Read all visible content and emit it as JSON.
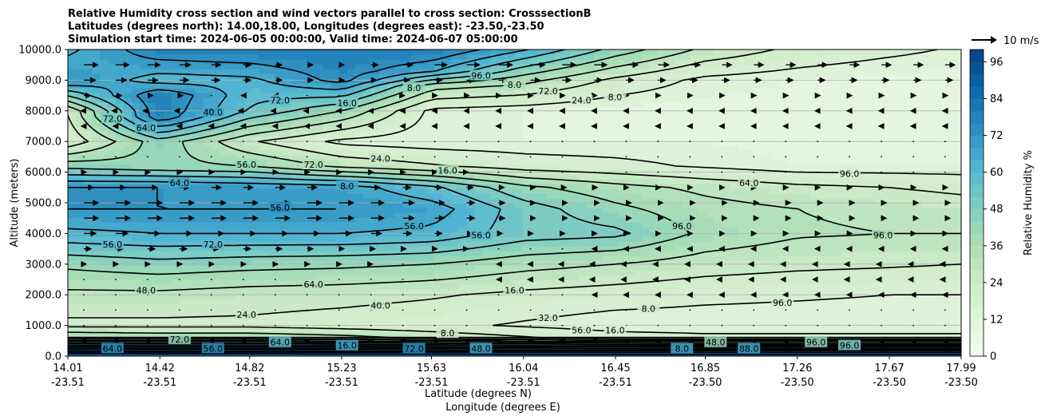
{
  "chart_data": {
    "type": "contourf",
    "title_lines": [
      "Relative Humidity cross section and wind vectors parallel to cross section: CrosssectionB",
      "Latitudes (degrees north): 14.00,18.00, Longitudes (degrees east): -23.50,-23.50",
      "Simulation start time: 2024-06-05 00:00:00, Valid time: 2024-06-07 05:00:00"
    ],
    "xlabel": "Latitude (degrees N)",
    "xlabel2": "Longitude (degrees E)",
    "ylabel": "Altitude (meters)",
    "xlim": [
      14.01,
      17.99
    ],
    "ylim": [
      0,
      10000
    ],
    "grid": "horizontal",
    "x_ticks": [
      {
        "lat": "14.01",
        "lon": "-23.51"
      },
      {
        "lat": "14.42",
        "lon": "-23.51"
      },
      {
        "lat": "14.82",
        "lon": "-23.51"
      },
      {
        "lat": "15.23",
        "lon": "-23.51"
      },
      {
        "lat": "15.63",
        "lon": "-23.51"
      },
      {
        "lat": "16.04",
        "lon": "-23.51"
      },
      {
        "lat": "16.45",
        "lon": "-23.51"
      },
      {
        "lat": "16.85",
        "lon": "-23.50"
      },
      {
        "lat": "17.26",
        "lon": "-23.50"
      },
      {
        "lat": "17.67",
        "lon": "-23.50"
      },
      {
        "lat": "17.99",
        "lon": "-23.50"
      }
    ],
    "y_ticks": [
      "0.0",
      "1000.0",
      "2000.0",
      "3000.0",
      "4000.0",
      "5000.0",
      "6000.0",
      "7000.0",
      "8000.0",
      "9000.0",
      "10000.0"
    ],
    "colorbar": {
      "label": "Relative Humidity %",
      "min": 0,
      "max": 100,
      "levels_step": 4,
      "ticks": [
        "0",
        "12",
        "24",
        "36",
        "48",
        "60",
        "72",
        "84",
        "96"
      ],
      "colormap": "GnBu"
    },
    "quiver_key": {
      "label": "10 m/s"
    },
    "rh_profiles": [
      {
        "lat": 14.01,
        "rh": [
          [
            0,
            95
          ],
          [
            600,
            40
          ],
          [
            1000,
            22
          ],
          [
            2000,
            30
          ],
          [
            3000,
            42
          ],
          [
            4000,
            62
          ],
          [
            4800,
            72
          ],
          [
            5500,
            72
          ],
          [
            6200,
            45
          ],
          [
            7000,
            18
          ],
          [
            8000,
            25
          ],
          [
            9000,
            72
          ],
          [
            10000,
            62
          ]
        ]
      },
      {
        "lat": 14.42,
        "rh": [
          [
            0,
            95
          ],
          [
            600,
            38
          ],
          [
            1000,
            22
          ],
          [
            2000,
            30
          ],
          [
            3000,
            45
          ],
          [
            4000,
            64
          ],
          [
            4800,
            72
          ],
          [
            5500,
            72
          ],
          [
            6200,
            42
          ],
          [
            7000,
            45
          ],
          [
            7800,
            78
          ],
          [
            8500,
            80
          ],
          [
            9000,
            60
          ],
          [
            10000,
            78
          ]
        ]
      },
      {
        "lat": 14.82,
        "rh": [
          [
            0,
            95
          ],
          [
            600,
            38
          ],
          [
            1000,
            22
          ],
          [
            2000,
            28
          ],
          [
            3000,
            43
          ],
          [
            4000,
            64
          ],
          [
            4800,
            72
          ],
          [
            5500,
            70
          ],
          [
            6200,
            40
          ],
          [
            7000,
            25
          ],
          [
            8000,
            55
          ],
          [
            9000,
            62
          ],
          [
            10000,
            80
          ]
        ]
      },
      {
        "lat": 15.23,
        "rh": [
          [
            0,
            95
          ],
          [
            600,
            35
          ],
          [
            1000,
            20
          ],
          [
            2000,
            27
          ],
          [
            3000,
            42
          ],
          [
            4000,
            64
          ],
          [
            4800,
            72
          ],
          [
            5500,
            68
          ],
          [
            6200,
            30
          ],
          [
            7000,
            14
          ],
          [
            8000,
            40
          ],
          [
            9000,
            75
          ],
          [
            10000,
            80
          ]
        ]
      },
      {
        "lat": 15.63,
        "rh": [
          [
            0,
            95
          ],
          [
            600,
            30
          ],
          [
            1000,
            18
          ],
          [
            2000,
            25
          ],
          [
            3000,
            40
          ],
          [
            4000,
            62
          ],
          [
            4800,
            68
          ],
          [
            5500,
            58
          ],
          [
            6200,
            25
          ],
          [
            7000,
            12
          ],
          [
            8000,
            14
          ],
          [
            8800,
            35
          ],
          [
            9300,
            65
          ],
          [
            10000,
            80
          ]
        ]
      },
      {
        "lat": 16.04,
        "rh": [
          [
            0,
            95
          ],
          [
            600,
            25
          ],
          [
            1000,
            15
          ],
          [
            2000,
            22
          ],
          [
            3000,
            35
          ],
          [
            4000,
            52
          ],
          [
            4800,
            52
          ],
          [
            5500,
            42
          ],
          [
            6200,
            20
          ],
          [
            7000,
            12
          ],
          [
            8000,
            12
          ],
          [
            9000,
            35
          ],
          [
            10000,
            65
          ]
        ]
      },
      {
        "lat": 16.45,
        "rh": [
          [
            0,
            95
          ],
          [
            600,
            20
          ],
          [
            1000,
            12
          ],
          [
            2000,
            20
          ],
          [
            3000,
            32
          ],
          [
            4000,
            50
          ],
          [
            4800,
            42
          ],
          [
            5500,
            35
          ],
          [
            6200,
            18
          ],
          [
            7000,
            12
          ],
          [
            8000,
            10
          ],
          [
            9000,
            22
          ],
          [
            10000,
            45
          ]
        ]
      },
      {
        "lat": 16.85,
        "rh": [
          [
            0,
            95
          ],
          [
            600,
            18
          ],
          [
            1000,
            12
          ],
          [
            2000,
            18
          ],
          [
            3000,
            28
          ],
          [
            4000,
            38
          ],
          [
            4800,
            35
          ],
          [
            5500,
            30
          ],
          [
            6200,
            15
          ],
          [
            7000,
            12
          ],
          [
            8000,
            10
          ],
          [
            9000,
            14
          ],
          [
            10000,
            30
          ]
        ]
      },
      {
        "lat": 17.26,
        "rh": [
          [
            0,
            95
          ],
          [
            600,
            18
          ],
          [
            1000,
            12
          ],
          [
            2000,
            17
          ],
          [
            3000,
            26
          ],
          [
            4000,
            33
          ],
          [
            4800,
            32
          ],
          [
            5500,
            26
          ],
          [
            6200,
            12
          ],
          [
            7000,
            10
          ],
          [
            8000,
            10
          ],
          [
            9000,
            12
          ],
          [
            10000,
            22
          ]
        ]
      },
      {
        "lat": 17.67,
        "rh": [
          [
            0,
            95
          ],
          [
            600,
            18
          ],
          [
            1000,
            12
          ],
          [
            2000,
            16
          ],
          [
            3000,
            25
          ],
          [
            4000,
            32
          ],
          [
            4800,
            30
          ],
          [
            5500,
            24
          ],
          [
            6200,
            12
          ],
          [
            7000,
            10
          ],
          [
            8000,
            10
          ],
          [
            9000,
            10
          ],
          [
            10000,
            18
          ]
        ]
      },
      {
        "lat": 17.99,
        "rh": [
          [
            0,
            95
          ],
          [
            600,
            18
          ],
          [
            1000,
            12
          ],
          [
            2000,
            16
          ],
          [
            3000,
            24
          ],
          [
            4000,
            32
          ],
          [
            4800,
            28
          ],
          [
            5500,
            22
          ],
          [
            6200,
            12
          ],
          [
            7000,
            10
          ],
          [
            8000,
            10
          ],
          [
            9000,
            10
          ],
          [
            10000,
            15
          ]
        ]
      }
    ],
    "contour_levels": [
      8,
      16,
      24,
      32,
      40,
      48,
      56,
      64,
      72,
      80,
      88,
      96
    ],
    "contour_labels": [
      "64.0",
      "56.0",
      "72.0",
      "48.0",
      "64.0",
      "72.0",
      "64.0",
      "56.0",
      "72.0",
      "40.0",
      "24.0",
      "56.0",
      "64.0",
      "56.0",
      "72.0",
      "64.0",
      "72.0",
      "16.0",
      "8.0",
      "16.0",
      "40.0",
      "24.0",
      "72.0",
      "56.0",
      "8.0",
      "8.0",
      "16.0",
      "48.0",
      "56.0",
      "96.0",
      "16.0",
      "8.0",
      "32.0",
      "72.0",
      "56.0",
      "24.0",
      "16.0",
      "8.0",
      "8.0",
      "8.0",
      "96.0",
      "48.0",
      "88.0",
      "64.0",
      "96.0",
      "96.0",
      "96.0",
      "96.0",
      "96.0"
    ],
    "wind_levels": [
      {
        "alt": 9500,
        "u": [
          6,
          5,
          3,
          2,
          5,
          6,
          5,
          4,
          4,
          4,
          4
        ]
      },
      {
        "alt": 9000,
        "u": [
          5,
          4,
          3,
          2,
          3,
          4,
          3,
          3,
          3,
          3,
          3
        ]
      },
      {
        "alt": 8500,
        "u": [
          3,
          2,
          -1,
          0,
          1,
          1,
          1,
          1,
          1,
          1,
          1
        ]
      },
      {
        "alt": 8000,
        "u": [
          -1,
          -2,
          -2,
          -1,
          -1,
          -1,
          -1,
          -1,
          -1,
          -1,
          -1
        ]
      },
      {
        "alt": 7500,
        "u": [
          -1,
          -1,
          -1,
          -1,
          -1,
          -1,
          -1,
          -1,
          -1,
          -1,
          -1
        ]
      },
      {
        "alt": 7000,
        "u": [
          0,
          0,
          0,
          0,
          0,
          0,
          0,
          0,
          0,
          0,
          0
        ]
      },
      {
        "alt": 6500,
        "u": [
          0,
          0,
          0,
          0,
          0,
          0,
          0,
          0,
          0,
          0,
          0
        ]
      },
      {
        "alt": 6000,
        "u": [
          1,
          1,
          1,
          1,
          1,
          0,
          0,
          0,
          0,
          0,
          0
        ]
      },
      {
        "alt": 5500,
        "u": [
          4,
          4,
          4,
          4,
          3,
          2,
          1,
          1,
          1,
          1,
          1
        ]
      },
      {
        "alt": 5000,
        "u": [
          6,
          6,
          6,
          6,
          4,
          2,
          2,
          2,
          2,
          2,
          2
        ]
      },
      {
        "alt": 4500,
        "u": [
          6,
          6,
          6,
          6,
          4,
          2,
          2,
          2,
          2,
          2,
          2
        ]
      },
      {
        "alt": 4000,
        "u": [
          5,
          5,
          5,
          5,
          3,
          1,
          1,
          1,
          1,
          1,
          1
        ]
      },
      {
        "alt": 3500,
        "u": [
          3,
          3,
          3,
          2,
          1,
          0,
          -1,
          -1,
          -1,
          -1,
          -1
        ]
      },
      {
        "alt": 3000,
        "u": [
          1,
          1,
          1,
          1,
          0,
          -1,
          -2,
          -2,
          -2,
          -2,
          -2
        ]
      },
      {
        "alt": 2500,
        "u": [
          0,
          0,
          0,
          0,
          0,
          -1,
          -2,
          -2,
          -2,
          -2,
          -2
        ]
      },
      {
        "alt": 2000,
        "u": [
          0,
          0,
          0,
          0,
          0,
          0,
          -1,
          -1,
          -1,
          -1,
          -1
        ]
      },
      {
        "alt": 1500,
        "u": [
          0,
          0,
          0,
          0,
          0,
          0,
          0,
          0,
          0,
          0,
          0
        ]
      },
      {
        "alt": 1000,
        "u": [
          0,
          0,
          0,
          0,
          0,
          0,
          0,
          0,
          0,
          0,
          0
        ]
      },
      {
        "alt": 500,
        "u": [
          -1,
          -1,
          -1,
          -1,
          -1,
          -1,
          -1,
          -1,
          -1,
          -1,
          -1
        ]
      }
    ]
  }
}
